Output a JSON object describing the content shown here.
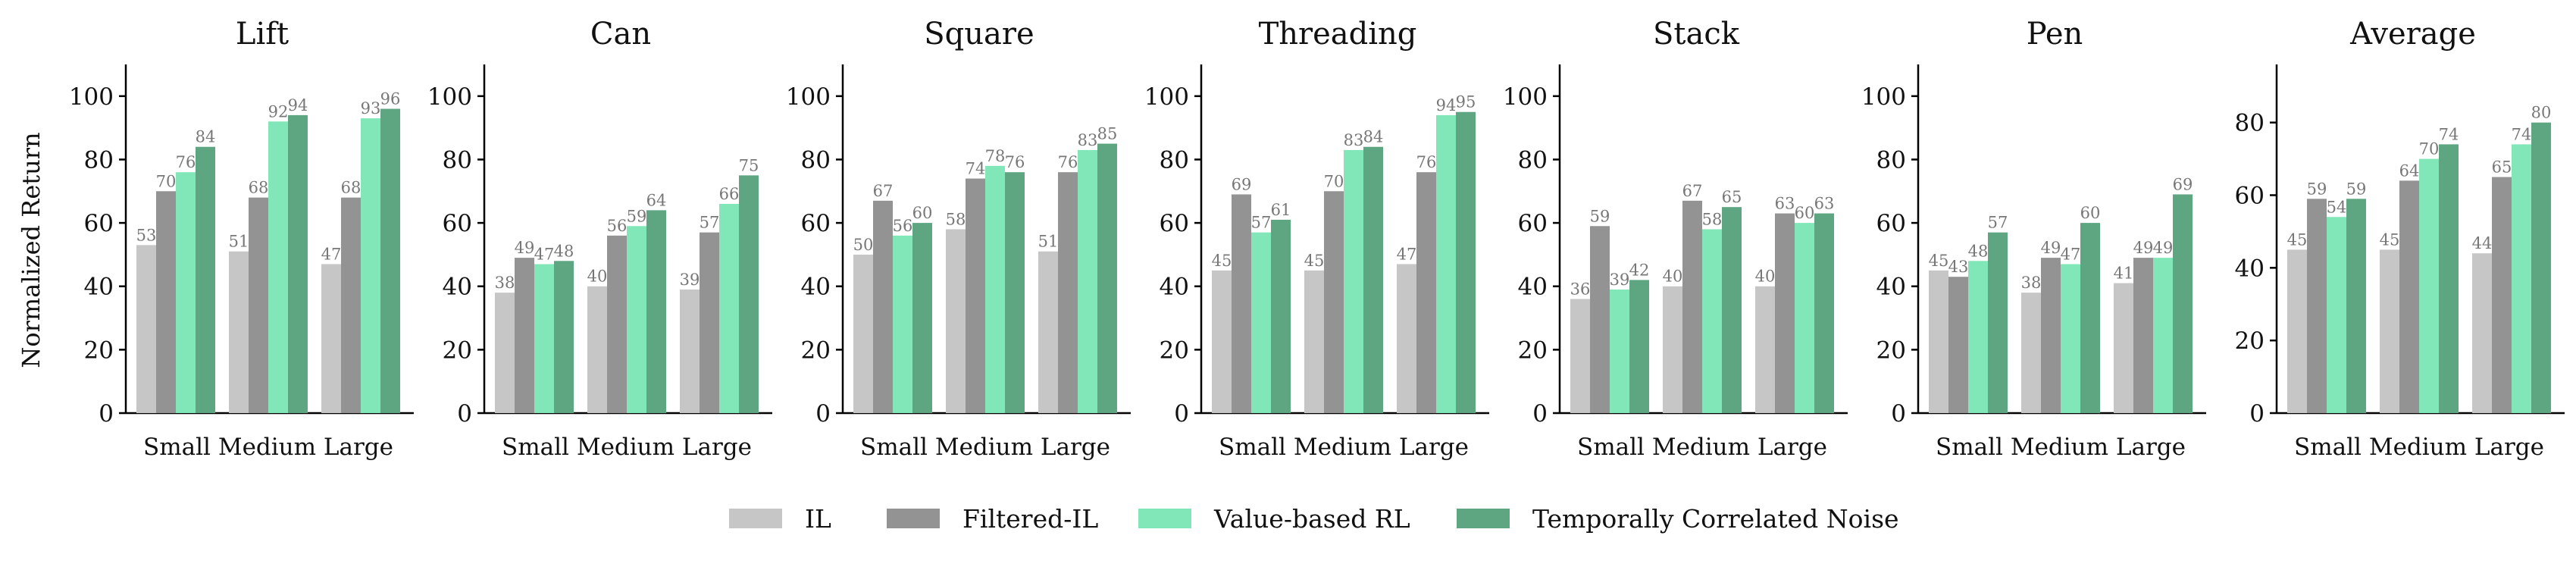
{
  "chart_data": {
    "type": "bar",
    "ylabel": "Normalized Return",
    "categories": [
      "Small",
      "Medium",
      "Large"
    ],
    "legend_position": "bottom-center",
    "grid": false,
    "colors": {
      "IL": "#c6c6c6",
      "Filtered-IL": "#939393",
      "Value-based RL": "#82e7b8",
      "Temporally Correlated Noise": "#5ea582"
    },
    "series_names": [
      "IL",
      "Filtered-IL",
      "Value-based RL",
      "Temporally Correlated Noise"
    ],
    "panels": [
      {
        "title": "Lift",
        "ylim": [
          0,
          110
        ],
        "yticks": [
          0,
          20,
          40,
          60,
          80,
          100
        ],
        "series": [
          {
            "name": "IL",
            "values": [
              53,
              51,
              47
            ]
          },
          {
            "name": "Filtered-IL",
            "values": [
              70,
              68,
              68
            ]
          },
          {
            "name": "Value-based RL",
            "values": [
              76,
              92,
              93
            ]
          },
          {
            "name": "Temporally Correlated Noise",
            "values": [
              84,
              94,
              96
            ]
          }
        ]
      },
      {
        "title": "Can",
        "ylim": [
          0,
          110
        ],
        "yticks": [
          0,
          20,
          40,
          60,
          80,
          100
        ],
        "series": [
          {
            "name": "IL",
            "values": [
              38,
              40,
              39
            ]
          },
          {
            "name": "Filtered-IL",
            "values": [
              49,
              56,
              57
            ]
          },
          {
            "name": "Value-based RL",
            "values": [
              47,
              59,
              66
            ]
          },
          {
            "name": "Temporally Correlated Noise",
            "values": [
              48,
              64,
              75
            ]
          }
        ]
      },
      {
        "title": "Square",
        "ylim": [
          0,
          110
        ],
        "yticks": [
          0,
          20,
          40,
          60,
          80,
          100
        ],
        "series": [
          {
            "name": "IL",
            "values": [
              50,
              58,
              51
            ]
          },
          {
            "name": "Filtered-IL",
            "values": [
              67,
              74,
              76
            ]
          },
          {
            "name": "Value-based RL",
            "values": [
              56,
              78,
              83
            ]
          },
          {
            "name": "Temporally Correlated Noise",
            "values": [
              60,
              76,
              85
            ]
          }
        ]
      },
      {
        "title": "Threading",
        "ylim": [
          0,
          110
        ],
        "yticks": [
          0,
          20,
          40,
          60,
          80,
          100
        ],
        "series": [
          {
            "name": "IL",
            "values": [
              45,
              45,
              47
            ]
          },
          {
            "name": "Filtered-IL",
            "values": [
              69,
              70,
              76
            ]
          },
          {
            "name": "Value-based RL",
            "values": [
              57,
              83,
              94
            ]
          },
          {
            "name": "Temporally Correlated Noise",
            "values": [
              61,
              84,
              95
            ]
          }
        ]
      },
      {
        "title": "Stack",
        "ylim": [
          0,
          110
        ],
        "yticks": [
          0,
          20,
          40,
          60,
          80,
          100
        ],
        "series": [
          {
            "name": "IL",
            "values": [
              36,
              40,
              40
            ]
          },
          {
            "name": "Filtered-IL",
            "values": [
              59,
              67,
              63
            ]
          },
          {
            "name": "Value-based RL",
            "values": [
              39,
              58,
              60
            ]
          },
          {
            "name": "Temporally Correlated Noise",
            "values": [
              42,
              65,
              63
            ]
          }
        ]
      },
      {
        "title": "Pen",
        "ylim": [
          0,
          110
        ],
        "yticks": [
          0,
          20,
          40,
          60,
          80,
          100
        ],
        "series": [
          {
            "name": "IL",
            "values": [
              45,
              38,
              41
            ]
          },
          {
            "name": "Filtered-IL",
            "values": [
              43,
              49,
              49
            ]
          },
          {
            "name": "Value-based RL",
            "values": [
              48,
              47,
              49
            ]
          },
          {
            "name": "Temporally Correlated Noise",
            "values": [
              57,
              60,
              69
            ]
          }
        ]
      },
      {
        "title": "Average",
        "ylim": [
          0,
          96
        ],
        "yticks": [
          0,
          20,
          40,
          60,
          80
        ],
        "series": [
          {
            "name": "IL",
            "values": [
              45,
              45,
              44
            ]
          },
          {
            "name": "Filtered-IL",
            "values": [
              59,
              64,
              65
            ]
          },
          {
            "name": "Value-based RL",
            "values": [
              54,
              70,
              74
            ]
          },
          {
            "name": "Temporally Correlated Noise",
            "values": [
              59,
              74,
              80
            ]
          }
        ]
      }
    ]
  }
}
